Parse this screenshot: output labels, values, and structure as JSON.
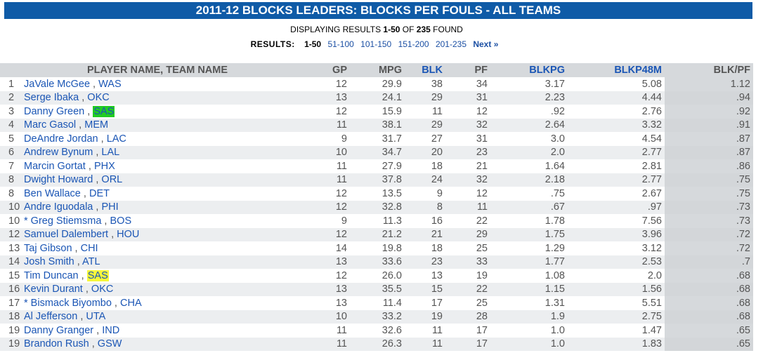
{
  "title": "2011-12 BLOCKS LEADERS:  BLOCKS PER FOULS  - ALL TEAMS",
  "display": {
    "prefix": "DISPLAYING RESULTS ",
    "range": "1-50",
    "mid": " OF ",
    "total": "235",
    "suffix": " FOUND"
  },
  "pagination": {
    "label": "RESULTS:",
    "current": "1-50",
    "pages": [
      "51-100",
      "101-150",
      "151-200",
      "201-235"
    ],
    "next": "Next »"
  },
  "headers": {
    "player": "PLAYER NAME, TEAM NAME",
    "gp": "GP",
    "mpg": "MPG",
    "blk": "BLK",
    "pf": "PF",
    "blkpg": "BLKPG",
    "blkp48m": "BLKP48M",
    "blkpf": "BLK/PF"
  },
  "rows": [
    {
      "rank": "1",
      "name": "JaVale McGee",
      "team": "WAS",
      "hl": "",
      "gp": "12",
      "mpg": "29.9",
      "blk": "38",
      "pf": "34",
      "blkpg": "3.17",
      "blkp48m": "5.08",
      "blkpf": "1.12"
    },
    {
      "rank": "2",
      "name": "Serge Ibaka",
      "team": "OKC",
      "hl": "",
      "gp": "13",
      "mpg": "24.1",
      "blk": "29",
      "pf": "31",
      "blkpg": "2.23",
      "blkp48m": "4.44",
      "blkpf": ".94"
    },
    {
      "rank": "3",
      "name": "Danny Green",
      "team": "SAS",
      "hl": "green",
      "gp": "12",
      "mpg": "15.9",
      "blk": "11",
      "pf": "12",
      "blkpg": ".92",
      "blkp48m": "2.76",
      "blkpf": ".92"
    },
    {
      "rank": "4",
      "name": "Marc Gasol",
      "team": "MEM",
      "hl": "",
      "gp": "11",
      "mpg": "38.1",
      "blk": "29",
      "pf": "32",
      "blkpg": "2.64",
      "blkp48m": "3.32",
      "blkpf": ".91"
    },
    {
      "rank": "5",
      "name": "DeAndre Jordan",
      "team": "LAC",
      "hl": "",
      "gp": "9",
      "mpg": "31.7",
      "blk": "27",
      "pf": "31",
      "blkpg": "3.0",
      "blkp48m": "4.54",
      "blkpf": ".87"
    },
    {
      "rank": "6",
      "name": "Andrew Bynum",
      "team": "LAL",
      "hl": "",
      "gp": "10",
      "mpg": "34.7",
      "blk": "20",
      "pf": "23",
      "blkpg": "2.0",
      "blkp48m": "2.77",
      "blkpf": ".87"
    },
    {
      "rank": "7",
      "name": "Marcin Gortat",
      "team": "PHX",
      "hl": "",
      "gp": "11",
      "mpg": "27.9",
      "blk": "18",
      "pf": "21",
      "blkpg": "1.64",
      "blkp48m": "2.81",
      "blkpf": ".86"
    },
    {
      "rank": "8",
      "name": "Dwight Howard",
      "team": "ORL",
      "hl": "",
      "gp": "11",
      "mpg": "37.8",
      "blk": "24",
      "pf": "32",
      "blkpg": "2.18",
      "blkp48m": "2.77",
      "blkpf": ".75"
    },
    {
      "rank": "8",
      "name": "Ben Wallace",
      "team": "DET",
      "hl": "",
      "gp": "12",
      "mpg": "13.5",
      "blk": "9",
      "pf": "12",
      "blkpg": ".75",
      "blkp48m": "2.67",
      "blkpf": ".75"
    },
    {
      "rank": "10",
      "name": "Andre Iguodala",
      "team": "PHI",
      "hl": "",
      "gp": "12",
      "mpg": "32.8",
      "blk": "8",
      "pf": "11",
      "blkpg": ".67",
      "blkp48m": ".97",
      "blkpf": ".73"
    },
    {
      "rank": "10",
      "name": "* Greg Stiemsma",
      "team": "BOS",
      "hl": "",
      "gp": "9",
      "mpg": "11.3",
      "blk": "16",
      "pf": "22",
      "blkpg": "1.78",
      "blkp48m": "7.56",
      "blkpf": ".73"
    },
    {
      "rank": "12",
      "name": "Samuel Dalembert",
      "team": "HOU",
      "hl": "",
      "gp": "12",
      "mpg": "21.2",
      "blk": "21",
      "pf": "29",
      "blkpg": "1.75",
      "blkp48m": "3.96",
      "blkpf": ".72"
    },
    {
      "rank": "13",
      "name": "Taj Gibson",
      "team": "CHI",
      "hl": "",
      "gp": "14",
      "mpg": "19.8",
      "blk": "18",
      "pf": "25",
      "blkpg": "1.29",
      "blkp48m": "3.12",
      "blkpf": ".72"
    },
    {
      "rank": "14",
      "name": "Josh Smith",
      "team": "ATL",
      "hl": "",
      "gp": "13",
      "mpg": "33.6",
      "blk": "23",
      "pf": "33",
      "blkpg": "1.77",
      "blkp48m": "2.53",
      "blkpf": ".7"
    },
    {
      "rank": "15",
      "name": "Tim Duncan",
      "team": "SAS",
      "hl": "yellow",
      "gp": "12",
      "mpg": "26.0",
      "blk": "13",
      "pf": "19",
      "blkpg": "1.08",
      "blkp48m": "2.0",
      "blkpf": ".68"
    },
    {
      "rank": "16",
      "name": "Kevin Durant",
      "team": "OKC",
      "hl": "",
      "gp": "13",
      "mpg": "35.5",
      "blk": "15",
      "pf": "22",
      "blkpg": "1.15",
      "blkp48m": "1.56",
      "blkpf": ".68"
    },
    {
      "rank": "17",
      "name": "* Bismack Biyombo",
      "team": "CHA",
      "hl": "",
      "gp": "13",
      "mpg": "11.4",
      "blk": "17",
      "pf": "25",
      "blkpg": "1.31",
      "blkp48m": "5.51",
      "blkpf": ".68"
    },
    {
      "rank": "18",
      "name": "Al Jefferson",
      "team": "UTA",
      "hl": "",
      "gp": "10",
      "mpg": "33.2",
      "blk": "19",
      "pf": "28",
      "blkpg": "1.9",
      "blkp48m": "2.75",
      "blkpf": ".68"
    },
    {
      "rank": "19",
      "name": "Danny Granger",
      "team": "IND",
      "hl": "",
      "gp": "11",
      "mpg": "32.6",
      "blk": "11",
      "pf": "17",
      "blkpg": "1.0",
      "blkp48m": "1.47",
      "blkpf": ".65"
    },
    {
      "rank": "19",
      "name": "Brandon Rush",
      "team": "GSW",
      "hl": "",
      "gp": "11",
      "mpg": "26.3",
      "blk": "11",
      "pf": "17",
      "blkpg": "1.0",
      "blkp48m": "1.83",
      "blkpf": ".65"
    }
  ]
}
